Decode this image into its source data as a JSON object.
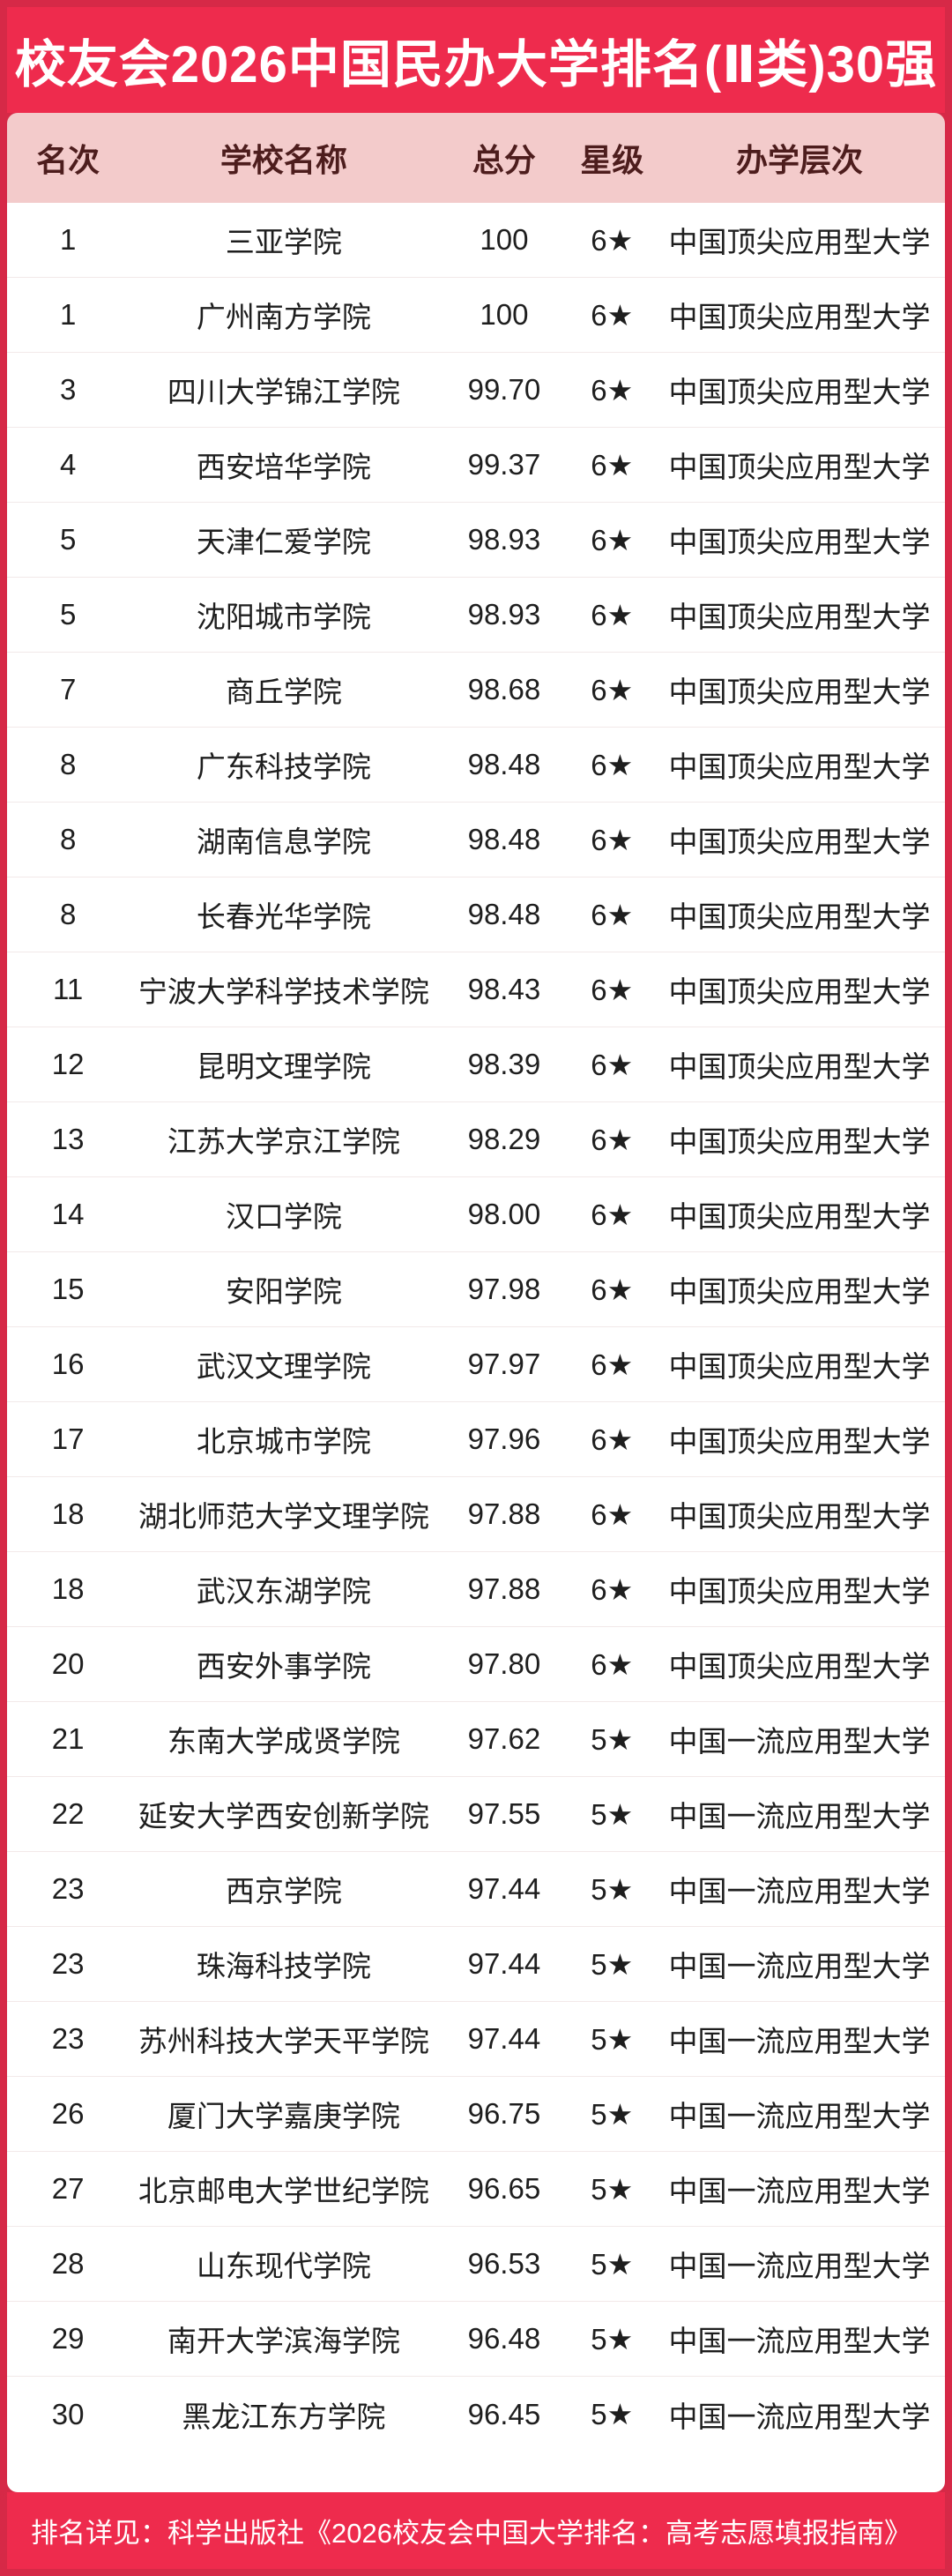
{
  "page": {
    "title": "校友会2026中国民办大学排名(Ⅱ类)30强",
    "footer": "排名详见：科学出版社《2026校友会中国大学排名：高考志愿填报指南》"
  },
  "colors": {
    "outer_border_red": "#d62947",
    "banner_red": "#ee2b4d",
    "header_pink": "#f3cbcb",
    "header_text": "#4d1d1d",
    "row_text": "#1e1e1e",
    "row_separator": "#f2e9e9"
  },
  "table": {
    "columns": [
      "名次",
      "学校名称",
      "总分",
      "星级",
      "办学层次"
    ],
    "rows": [
      {
        "rank": "1",
        "name": "三亚学院",
        "score": "100",
        "star": "6★",
        "level": "中国顶尖应用型大学"
      },
      {
        "rank": "1",
        "name": "广州南方学院",
        "score": "100",
        "star": "6★",
        "level": "中国顶尖应用型大学"
      },
      {
        "rank": "3",
        "name": "四川大学锦江学院",
        "score": "99.70",
        "star": "6★",
        "level": "中国顶尖应用型大学"
      },
      {
        "rank": "4",
        "name": "西安培华学院",
        "score": "99.37",
        "star": "6★",
        "level": "中国顶尖应用型大学"
      },
      {
        "rank": "5",
        "name": "天津仁爱学院",
        "score": "98.93",
        "star": "6★",
        "level": "中国顶尖应用型大学"
      },
      {
        "rank": "5",
        "name": "沈阳城市学院",
        "score": "98.93",
        "star": "6★",
        "level": "中国顶尖应用型大学"
      },
      {
        "rank": "7",
        "name": "商丘学院",
        "score": "98.68",
        "star": "6★",
        "level": "中国顶尖应用型大学"
      },
      {
        "rank": "8",
        "name": "广东科技学院",
        "score": "98.48",
        "star": "6★",
        "level": "中国顶尖应用型大学"
      },
      {
        "rank": "8",
        "name": "湖南信息学院",
        "score": "98.48",
        "star": "6★",
        "level": "中国顶尖应用型大学"
      },
      {
        "rank": "8",
        "name": "长春光华学院",
        "score": "98.48",
        "star": "6★",
        "level": "中国顶尖应用型大学"
      },
      {
        "rank": "11",
        "name": "宁波大学科学技术学院",
        "score": "98.43",
        "star": "6★",
        "level": "中国顶尖应用型大学"
      },
      {
        "rank": "12",
        "name": "昆明文理学院",
        "score": "98.39",
        "star": "6★",
        "level": "中国顶尖应用型大学"
      },
      {
        "rank": "13",
        "name": "江苏大学京江学院",
        "score": "98.29",
        "star": "6★",
        "level": "中国顶尖应用型大学"
      },
      {
        "rank": "14",
        "name": "汉口学院",
        "score": "98.00",
        "star": "6★",
        "level": "中国顶尖应用型大学"
      },
      {
        "rank": "15",
        "name": "安阳学院",
        "score": "97.98",
        "star": "6★",
        "level": "中国顶尖应用型大学"
      },
      {
        "rank": "16",
        "name": "武汉文理学院",
        "score": "97.97",
        "star": "6★",
        "level": "中国顶尖应用型大学"
      },
      {
        "rank": "17",
        "name": "北京城市学院",
        "score": "97.96",
        "star": "6★",
        "level": "中国顶尖应用型大学"
      },
      {
        "rank": "18",
        "name": "湖北师范大学文理学院",
        "score": "97.88",
        "star": "6★",
        "level": "中国顶尖应用型大学"
      },
      {
        "rank": "18",
        "name": "武汉东湖学院",
        "score": "97.88",
        "star": "6★",
        "level": "中国顶尖应用型大学"
      },
      {
        "rank": "20",
        "name": "西安外事学院",
        "score": "97.80",
        "star": "6★",
        "level": "中国顶尖应用型大学"
      },
      {
        "rank": "21",
        "name": "东南大学成贤学院",
        "score": "97.62",
        "star": "5★",
        "level": "中国一流应用型大学"
      },
      {
        "rank": "22",
        "name": "延安大学西安创新学院",
        "score": "97.55",
        "star": "5★",
        "level": "中国一流应用型大学"
      },
      {
        "rank": "23",
        "name": "西京学院",
        "score": "97.44",
        "star": "5★",
        "level": "中国一流应用型大学"
      },
      {
        "rank": "23",
        "name": "珠海科技学院",
        "score": "97.44",
        "star": "5★",
        "level": "中国一流应用型大学"
      },
      {
        "rank": "23",
        "name": "苏州科技大学天平学院",
        "score": "97.44",
        "star": "5★",
        "level": "中国一流应用型大学"
      },
      {
        "rank": "26",
        "name": "厦门大学嘉庚学院",
        "score": "96.75",
        "star": "5★",
        "level": "中国一流应用型大学"
      },
      {
        "rank": "27",
        "name": "北京邮电大学世纪学院",
        "score": "96.65",
        "star": "5★",
        "level": "中国一流应用型大学"
      },
      {
        "rank": "28",
        "name": "山东现代学院",
        "score": "96.53",
        "star": "5★",
        "level": "中国一流应用型大学"
      },
      {
        "rank": "29",
        "name": "南开大学滨海学院",
        "score": "96.48",
        "star": "5★",
        "level": "中国一流应用型大学"
      },
      {
        "rank": "30",
        "name": "黑龙江东方学院",
        "score": "96.45",
        "star": "5★",
        "level": "中国一流应用型大学"
      }
    ]
  }
}
